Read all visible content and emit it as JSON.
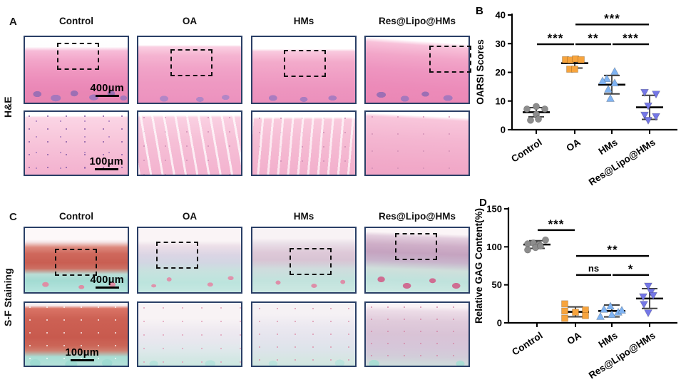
{
  "figure": {
    "panel_a": {
      "label": "A",
      "row_label": "H&E",
      "columns": [
        "Control",
        "OA",
        "HMs",
        "Res@Lipo@HMs"
      ],
      "scalebar_top": "400μm",
      "scalebar_bottom": "100μm"
    },
    "panel_b": {
      "label": "B"
    },
    "panel_c": {
      "label": "C",
      "row_label": "S-F Staining",
      "columns": [
        "Control",
        "OA",
        "HMs",
        "Res@Lipo@HMs"
      ],
      "scalebar_top": "400μm",
      "scalebar_bottom": "100μm"
    },
    "panel_d": {
      "label": "D"
    }
  },
  "colors": {
    "control": "#8d8d8d",
    "oa": "#f7a43d",
    "hms": "#7fb3f2",
    "res_lipo_hms": "#7477e6",
    "axis": "#000000",
    "image_border": "#2a3f66"
  },
  "chart_data": [
    {
      "id": "panel_b",
      "type": "scatter",
      "title": "",
      "xlabel": "",
      "ylabel": "OARSI Scores",
      "ylim": [
        0,
        40
      ],
      "yticks": [
        0,
        10,
        20,
        30,
        40
      ],
      "grid": false,
      "legend": "none",
      "categories": [
        "Control",
        "OA",
        "HMs",
        "Res@Lipo@HMs"
      ],
      "series": [
        {
          "name": "Control",
          "marker": "circle",
          "color": "#8d8d8d",
          "points": [
            [
              -13,
              7.2
            ],
            [
              0,
              8.1
            ],
            [
              12,
              7.2
            ],
            [
              0,
              5.4
            ],
            [
              -8,
              3.3
            ],
            [
              3,
              3.7
            ]
          ],
          "mean": 6.1,
          "err": 1.6
        },
        {
          "name": "OA",
          "marker": "square",
          "color": "#f7a43d",
          "points": [
            [
              -13,
              24.4
            ],
            [
              -6,
              24.3
            ],
            [
              1,
              24.7
            ],
            [
              9,
              24.4
            ],
            [
              -7,
              21.1
            ],
            [
              0,
              21.1
            ]
          ],
          "mean": 23.2,
          "err": 1.7
        },
        {
          "name": "HMs",
          "marker": "triangle-up",
          "color": "#7fb3f2",
          "points": [
            [
              4,
              20.3
            ],
            [
              -7,
              17.8
            ],
            [
              -13,
              17.0
            ],
            [
              4,
              16.3
            ],
            [
              -5,
              14.1
            ],
            [
              -2,
              10.9
            ]
          ],
          "mean": 15.7,
          "err": 3.2
        },
        {
          "name": "Res@Lipo@HMs",
          "marker": "triangle-down",
          "color": "#7477e6",
          "points": [
            [
              -7,
              13.0
            ],
            [
              9,
              12.4
            ],
            [
              -2,
              8.3
            ],
            [
              -7,
              5.1
            ],
            [
              -2,
              3.3
            ],
            [
              9,
              4.6
            ]
          ],
          "mean": 7.8,
          "err": 4.2
        }
      ],
      "significance": [
        {
          "from": 0,
          "to": 1,
          "label": "***",
          "y": 29.8
        },
        {
          "from": 1,
          "to": 2,
          "label": "**",
          "y": 29.8
        },
        {
          "from": 2,
          "to": 3,
          "label": "***",
          "y": 29.8
        },
        {
          "from": 1,
          "to": 3,
          "label": "***",
          "y": 36.7
        }
      ]
    },
    {
      "id": "panel_d",
      "type": "scatter",
      "title": "",
      "xlabel": "",
      "ylabel": "Relative GAG Content(%)",
      "ylim": [
        0,
        150
      ],
      "yticks": [
        0,
        50,
        100,
        150
      ],
      "grid": false,
      "legend": "none",
      "categories": [
        "Control",
        "OA",
        "HMs",
        "Res@Lipo@HMs"
      ],
      "series": [
        {
          "name": "Control",
          "marker": "circle",
          "color": "#8d8d8d",
          "points": [
            [
              -13,
              104
            ],
            [
              -5,
              105
            ],
            [
              3,
              103
            ],
            [
              12,
              109
            ],
            [
              -13,
              96
            ],
            [
              -2,
              99
            ],
            [
              5,
              101
            ]
          ],
          "mean": 103,
          "err": 5
        },
        {
          "name": "OA",
          "marker": "square",
          "color": "#f7a43d",
          "points": [
            [
              -15,
              25
            ],
            [
              -15,
              15.5
            ],
            [
              -15,
              6
            ],
            [
              0,
              14
            ],
            [
              14,
              17
            ],
            [
              14,
              9.5
            ]
          ],
          "mean": 14.5,
          "err": 6.5
        },
        {
          "name": "HMs",
          "marker": "triangle-up",
          "color": "#7fb3f2",
          "points": [
            [
              -16,
              8.4
            ],
            [
              -11,
              17.8
            ],
            [
              -2,
              21.9
            ],
            [
              0,
              10.9
            ],
            [
              9,
              14.1
            ],
            [
              14,
              16.5
            ]
          ],
          "mean": 15.6,
          "err": 7.8
        },
        {
          "name": "Res@Lipo@HMs",
          "marker": "triangle-down",
          "color": "#7477e6",
          "points": [
            [
              -2,
              48.4
            ],
            [
              2,
              40.6
            ],
            [
              -9,
              34.3
            ],
            [
              5,
              35.9
            ],
            [
              -8,
              24.4
            ],
            [
              -2,
              13.1
            ]
          ],
          "mean": 32,
          "err": 13
        }
      ],
      "significance": [
        {
          "from": 0,
          "to": 1,
          "label": "***",
          "y": 122
        },
        {
          "from": 1,
          "to": 3,
          "label": "**",
          "y": 88
        },
        {
          "from": 1,
          "to": 2,
          "label": "ns",
          "y": 63
        },
        {
          "from": 2,
          "to": 3,
          "label": "*",
          "y": 63
        }
      ]
    }
  ]
}
